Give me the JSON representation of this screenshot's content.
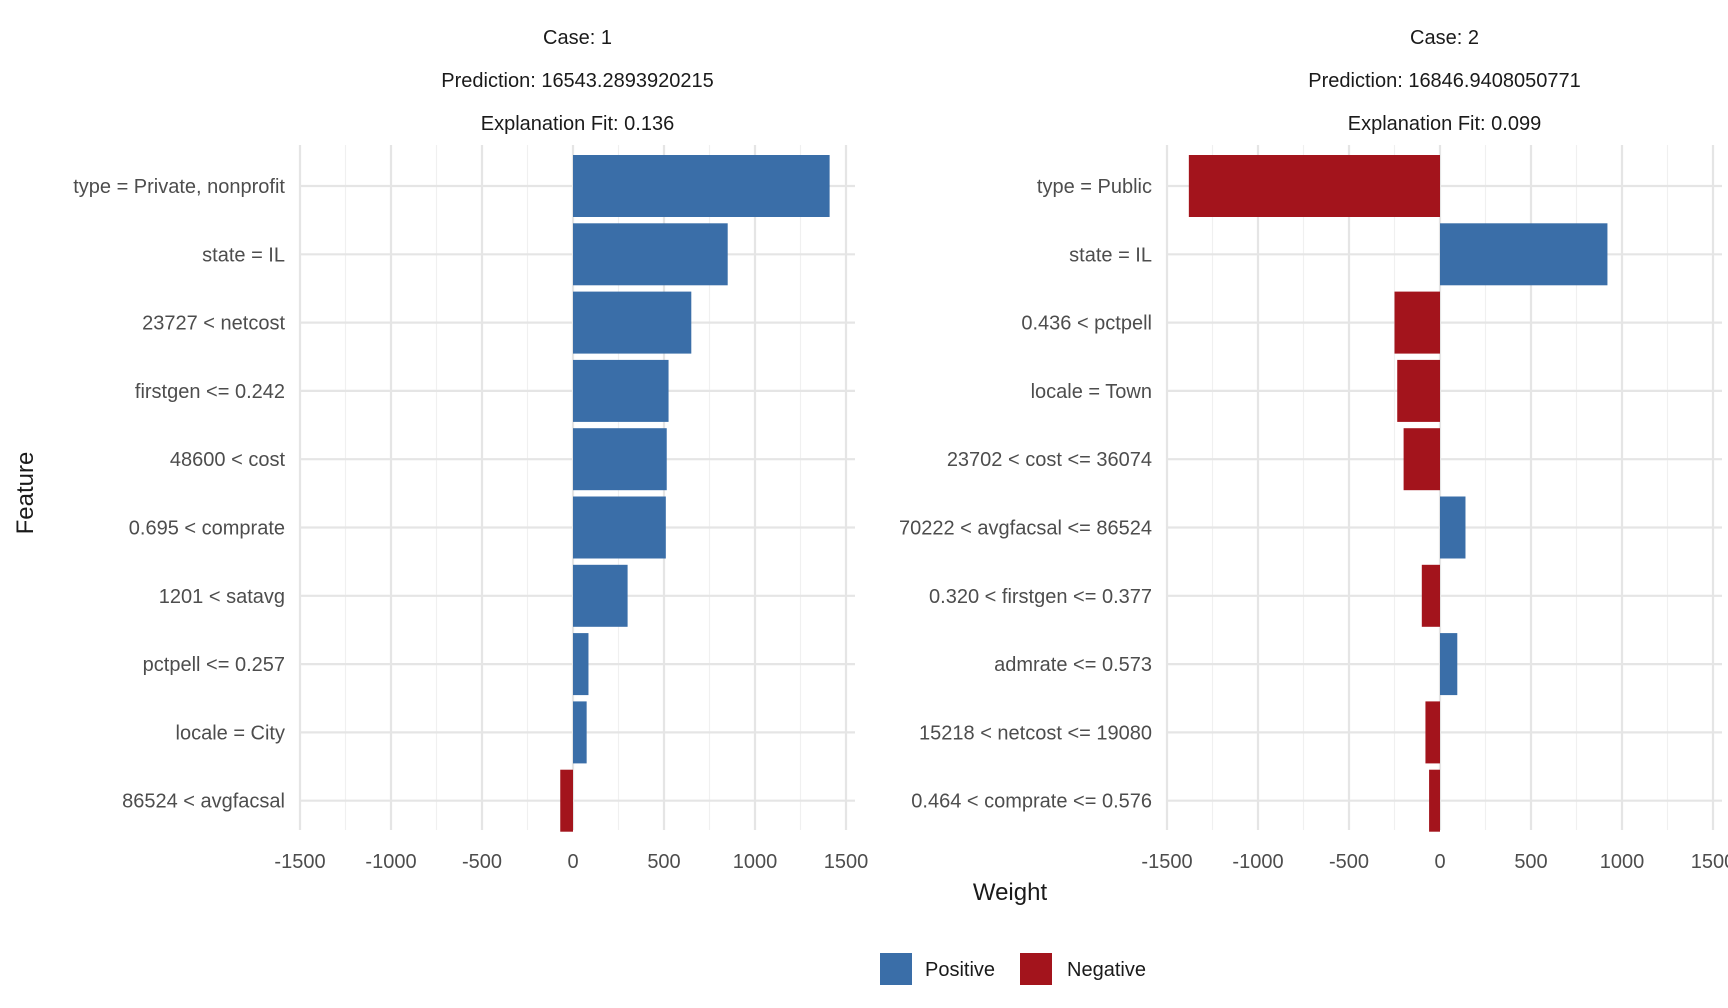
{
  "chart_data": {
    "type": "bar",
    "orientation": "horizontal",
    "xlabel": "Weight",
    "ylabel": "Feature",
    "xlim": [
      -1500,
      1500
    ],
    "xticks": [
      -1500,
      -1000,
      -500,
      0,
      500,
      1000,
      1500
    ],
    "grid": true,
    "legend": {
      "placement": "bottom",
      "entries": [
        {
          "label": "Positive",
          "color": "#3A6EA8"
        },
        {
          "label": "Negative",
          "color": "#A3141C"
        }
      ]
    },
    "panels": [
      {
        "case_label": "Case: 1",
        "prediction_label": "Prediction: 16543.2893920215",
        "fit_label": "Explanation Fit: 0.136",
        "features": [
          "type = Private, nonprofit",
          "state = IL",
          "23727 < netcost",
          "firstgen <= 0.242",
          "48600 < cost",
          "0.695 < comprate",
          "1201 < satavg",
          "pctpell <= 0.257",
          "locale = City",
          "86524 < avgfacsal"
        ],
        "weights": [
          1410,
          850,
          650,
          525,
          515,
          510,
          300,
          85,
          75,
          -70
        ]
      },
      {
        "case_label": "Case: 2",
        "prediction_label": "Prediction: 16846.9408050771",
        "fit_label": "Explanation Fit: 0.099",
        "features": [
          "type = Public",
          "state = IL",
          "0.436 < pctpell",
          "locale = Town",
          "23702 < cost <= 36074",
          "70222 < avgfacsal <= 86524",
          "0.320 < firstgen <= 0.377",
          "admrate <= 0.573",
          "15218 < netcost <= 19080",
          "0.464 < comprate <= 0.576"
        ],
        "weights": [
          -1380,
          920,
          -250,
          -235,
          -200,
          140,
          -100,
          95,
          -80,
          -60
        ]
      }
    ]
  }
}
